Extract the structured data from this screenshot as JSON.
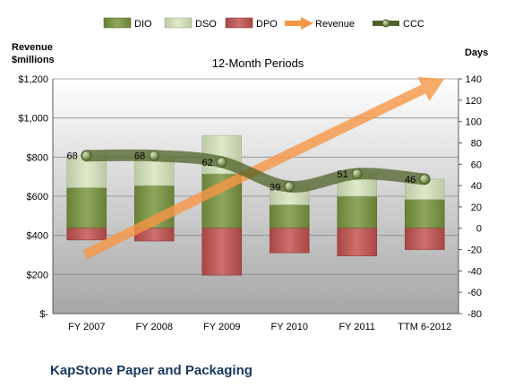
{
  "chart_data": {
    "type": "bar",
    "title": "12-Month Periods",
    "company": "KapStone Paper and Packaging",
    "y_left_label_line1": "Revenue",
    "y_left_label_line2": "$millions",
    "y_right_label": "Days",
    "categories": [
      "FY 2007",
      "FY 2008",
      "FY 2009",
      "FY 2010",
      "FY 2011",
      "TTM 6-2012"
    ],
    "y_left_range": [
      0,
      1200
    ],
    "y_left_ticks": [
      "$-",
      "$200",
      "$400",
      "$600",
      "$800",
      "$1,000",
      "$1,200"
    ],
    "y_right_range": [
      -80,
      140
    ],
    "y_right_ticks": [
      "-80",
      "-60",
      "-40",
      "-20",
      "0",
      "20",
      "40",
      "60",
      "80",
      "100",
      "120",
      "140"
    ],
    "legend_position": "top",
    "legend": [
      {
        "name": "DIO",
        "kind": "bar"
      },
      {
        "name": "DSO",
        "kind": "bar"
      },
      {
        "name": "DPO",
        "kind": "bar"
      },
      {
        "name": "Revenue",
        "kind": "arrow"
      },
      {
        "name": "CCC",
        "kind": "line-marker"
      }
    ],
    "series": [
      {
        "name": "DIO",
        "axis": "right",
        "values": [
          38,
          40,
          51,
          22,
          30,
          27
        ]
      },
      {
        "name": "DSO",
        "axis": "right",
        "values": [
          30,
          28,
          36,
          17,
          21,
          19
        ]
      },
      {
        "name": "DPO",
        "axis": "right",
        "values": [
          -11,
          -12,
          -44,
          -23,
          -26,
          -20
        ]
      },
      {
        "name": "CCC",
        "axis": "right",
        "values": [
          68,
          68,
          62,
          39,
          51,
          46
        ],
        "data_labels": [
          "68",
          "68",
          "62",
          "39",
          "51",
          "46"
        ]
      },
      {
        "name": "Revenue",
        "axis": "left",
        "trend": "increasing",
        "start": 300,
        "end": 1200
      }
    ],
    "colors": {
      "DIO": "#77933c",
      "DSO": "#d7e4bd",
      "DPO": "#c0504d",
      "Revenue": "#f79646",
      "CCC": "#4f6228",
      "title_text": "#17375e",
      "plot_top": "#ffffff",
      "plot_bottom": "#a6a6a6"
    }
  }
}
